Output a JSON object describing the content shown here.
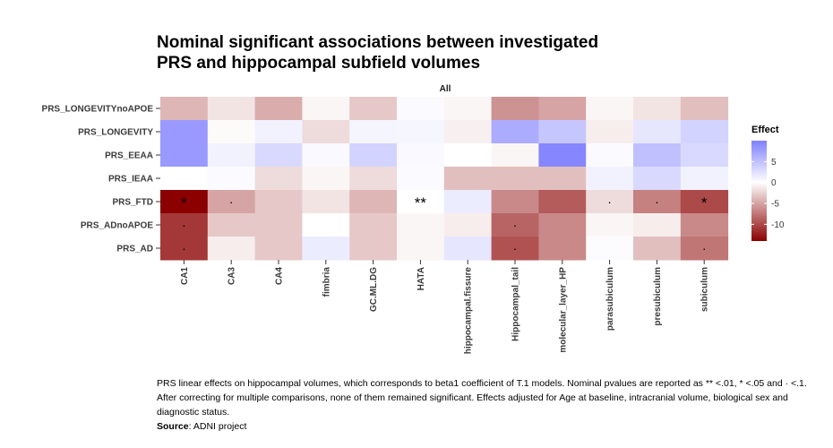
{
  "chart_data": {
    "type": "heatmap",
    "title_lines": [
      "Nominal significant associations between investigated",
      "PRS and hippocampal subfield volumes"
    ],
    "facet": "All",
    "x_categories": [
      "CA1",
      "CA3",
      "CA4",
      "fimbria",
      "GC.ML.DG",
      "HATA",
      "hippocampal.fissure",
      "Hippocampal_tail",
      "molecular_layer_HP",
      "parasubiculum",
      "presubiculum",
      "subiculum"
    ],
    "y_categories": [
      "PRS_LONGEVITYnoAPOE",
      "PRS_LONGEVITY",
      "PRS_EEAA",
      "PRS_IEAA",
      "PRS_FTD",
      "PRS_ADnoAPOE",
      "PRS_AD"
    ],
    "values": [
      [
        -4,
        -1.5,
        -4.5,
        -0.5,
        -3,
        0.3,
        -0.5,
        -6,
        -5,
        -0.5,
        -1.5,
        -3.5
      ],
      [
        8,
        -0.3,
        1,
        -2,
        0.8,
        0.7,
        -0.8,
        6.5,
        4.5,
        -1,
        2,
        3.5
      ],
      [
        8,
        1,
        3,
        0.5,
        3.5,
        0.5,
        0,
        -0.5,
        9.5,
        0.3,
        5,
        3
      ],
      [
        0,
        0.3,
        -2,
        -0.5,
        -2,
        0.3,
        -3.5,
        -3.5,
        -3.5,
        1,
        3,
        1
      ],
      [
        -14,
        -5,
        -3,
        -1.5,
        -4,
        0,
        1.5,
        -6.5,
        -9,
        -2,
        -7,
        -10
      ],
      [
        -11,
        -3,
        -3,
        0,
        -3,
        -0.5,
        -1,
        -8.5,
        -6.5,
        -0.5,
        -1,
        -6.5
      ],
      [
        -11,
        -1,
        -3,
        1.5,
        -3,
        -0.5,
        2,
        -9.5,
        -6.5,
        0.2,
        -3.5,
        -7.5
      ]
    ],
    "labels": [
      [
        "",
        "",
        "",
        "",
        "",
        "",
        "",
        "",
        "",
        "",
        "",
        ""
      ],
      [
        "",
        "",
        "",
        "",
        "",
        "",
        "",
        "",
        "",
        "",
        "",
        ""
      ],
      [
        "",
        "",
        "",
        "",
        "",
        "",
        "",
        "",
        "",
        "",
        "",
        ""
      ],
      [
        "",
        "",
        "",
        "",
        "",
        "",
        "",
        "",
        "",
        "",
        "",
        ""
      ],
      [
        "*",
        ".",
        "",
        "",
        "",
        "**",
        "",
        "",
        "",
        ".",
        ".",
        "*"
      ],
      [
        ".",
        "",
        "",
        "",
        "",
        "",
        "",
        ".",
        "",
        "",
        "",
        ""
      ],
      [
        ".",
        "",
        "",
        "",
        "",
        "",
        "",
        ".",
        "",
        "",
        "",
        "."
      ]
    ],
    "legend": {
      "title": "Effect",
      "ticks": [
        5,
        0,
        -5,
        -10
      ],
      "tick_labels": [
        "5",
        "0",
        "-5",
        "-10"
      ],
      "range": [
        -14,
        10
      ],
      "placement": "right"
    },
    "colors": {
      "high": "#8080ff",
      "mid": "#ffffff",
      "low": "#8b0000"
    },
    "background": "#ffffff"
  },
  "caption": {
    "text": "PRS linear effects on hippocampal volumes, which corresponds to beta1 coefficient of T.1 models. Nominal pvalues are reported as ** <.01, * <.05 and · <.1. After correcting for multiple comparisons, none of them remained significant. Effects adjusted for Age at baseline, intracranial volume, biological sex and diagnostic status.",
    "source_label": "Source",
    "source_text": ": ADNI project"
  }
}
